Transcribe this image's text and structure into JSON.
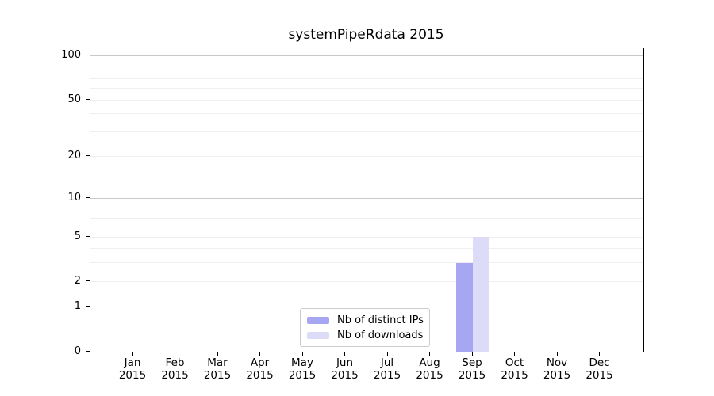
{
  "title": "systemPipeRdata 2015",
  "chart_data": {
    "type": "bar",
    "title": "systemPipeRdata 2015",
    "categories": [
      "Jan",
      "Feb",
      "Mar",
      "Apr",
      "May",
      "Jun",
      "Jul",
      "Aug",
      "Sep",
      "Oct",
      "Nov",
      "Dec"
    ],
    "category_sublabel": "2015",
    "series": [
      {
        "name": "Nb of distinct IPs",
        "color": "#a6a6f2",
        "values": [
          0,
          0,
          0,
          0,
          0,
          0,
          0,
          0,
          3,
          0,
          0,
          0
        ]
      },
      {
        "name": "Nb of downloads",
        "color": "#dcdcf9",
        "values": [
          0,
          0,
          0,
          0,
          0,
          0,
          0,
          0,
          5,
          0,
          0,
          0
        ]
      }
    ],
    "yscale": "log1p",
    "ylim": [
      0,
      113
    ],
    "yticks": [
      0,
      1,
      2,
      5,
      10,
      20,
      50,
      100
    ],
    "minor_gridlines": [
      2,
      3,
      4,
      5,
      6,
      7,
      8,
      9,
      20,
      30,
      40,
      50,
      60,
      70,
      80,
      90
    ],
    "major_gridlines": [
      1,
      10,
      100
    ],
    "grid": "horizontal",
    "legend_position": "lower-center",
    "colors": {
      "major_grid": "#c9c9c9",
      "minor_grid": "#efefef",
      "spine": "#000000"
    }
  }
}
